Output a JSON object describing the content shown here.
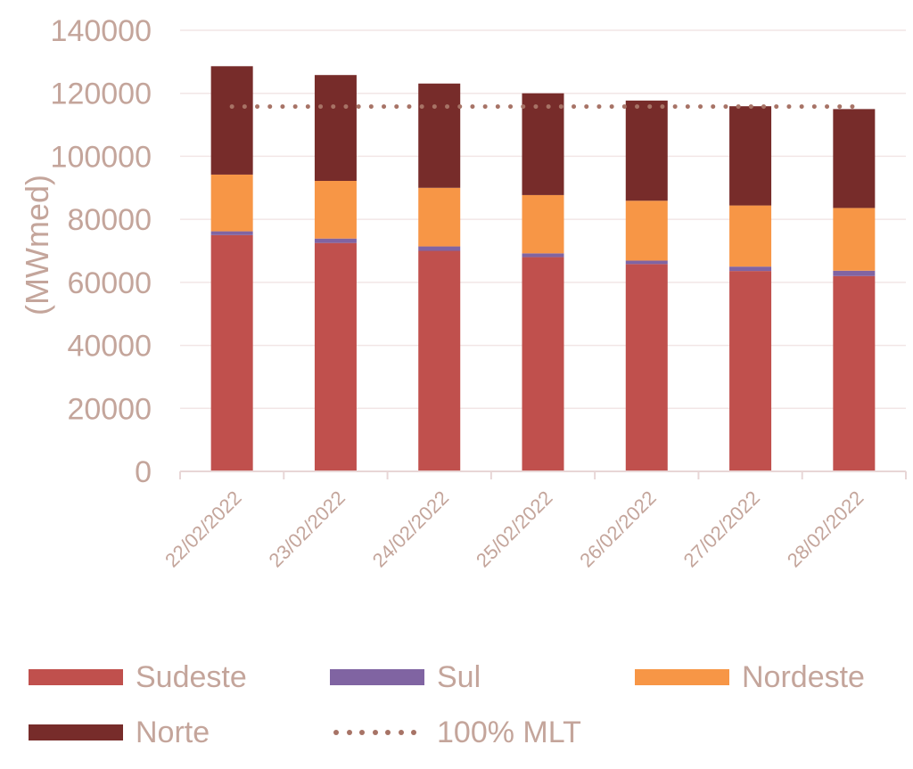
{
  "colors": {
    "text": "#c4a59b",
    "grid": "#f2e6e6",
    "axis": "#e8d6d6"
  },
  "chart_data": {
    "type": "bar",
    "stacked": true,
    "title": "",
    "xlabel": "",
    "ylabel": "(MWmed)",
    "ylim": [
      0,
      140000
    ],
    "yticks": [
      "0",
      "20000",
      "40000",
      "60000",
      "80000",
      "100000",
      "120000",
      "140000"
    ],
    "categories": [
      "22/02/2022",
      "23/02/2022",
      "24/02/2022",
      "25/02/2022",
      "26/02/2022",
      "27/02/2022",
      "28/02/2022"
    ],
    "series": [
      {
        "name": "Sudeste",
        "color": "#c0504d",
        "values": [
          75000,
          72500,
          70000,
          68000,
          65800,
          63600,
          62000
        ]
      },
      {
        "name": "Sul",
        "color": "#8064a2",
        "values": [
          1200,
          1400,
          1400,
          1200,
          1100,
          1400,
          1700
        ]
      },
      {
        "name": "Nordeste",
        "color": "#f79646",
        "values": [
          18000,
          18300,
          18600,
          18500,
          19000,
          19400,
          19900
        ]
      },
      {
        "name": "Norte",
        "color": "#772c2a",
        "values": [
          34400,
          33600,
          33100,
          32300,
          31800,
          31500,
          31400
        ]
      }
    ],
    "reference_line": {
      "name": "100% MLT",
      "value": 115800,
      "color": "#a77366",
      "style": "dotted"
    },
    "grid": true,
    "legend_position": "bottom"
  },
  "legend": {
    "items": [
      {
        "label": "Sudeste",
        "color": "#c0504d",
        "kind": "swatch"
      },
      {
        "label": "Sul",
        "color": "#8064a2",
        "kind": "swatch"
      },
      {
        "label": "Nordeste",
        "color": "#f79646",
        "kind": "swatch"
      },
      {
        "label": "Norte",
        "color": "#772c2a",
        "kind": "swatch"
      },
      {
        "label": "100% MLT",
        "color": "#a77366",
        "kind": "dots"
      }
    ]
  }
}
